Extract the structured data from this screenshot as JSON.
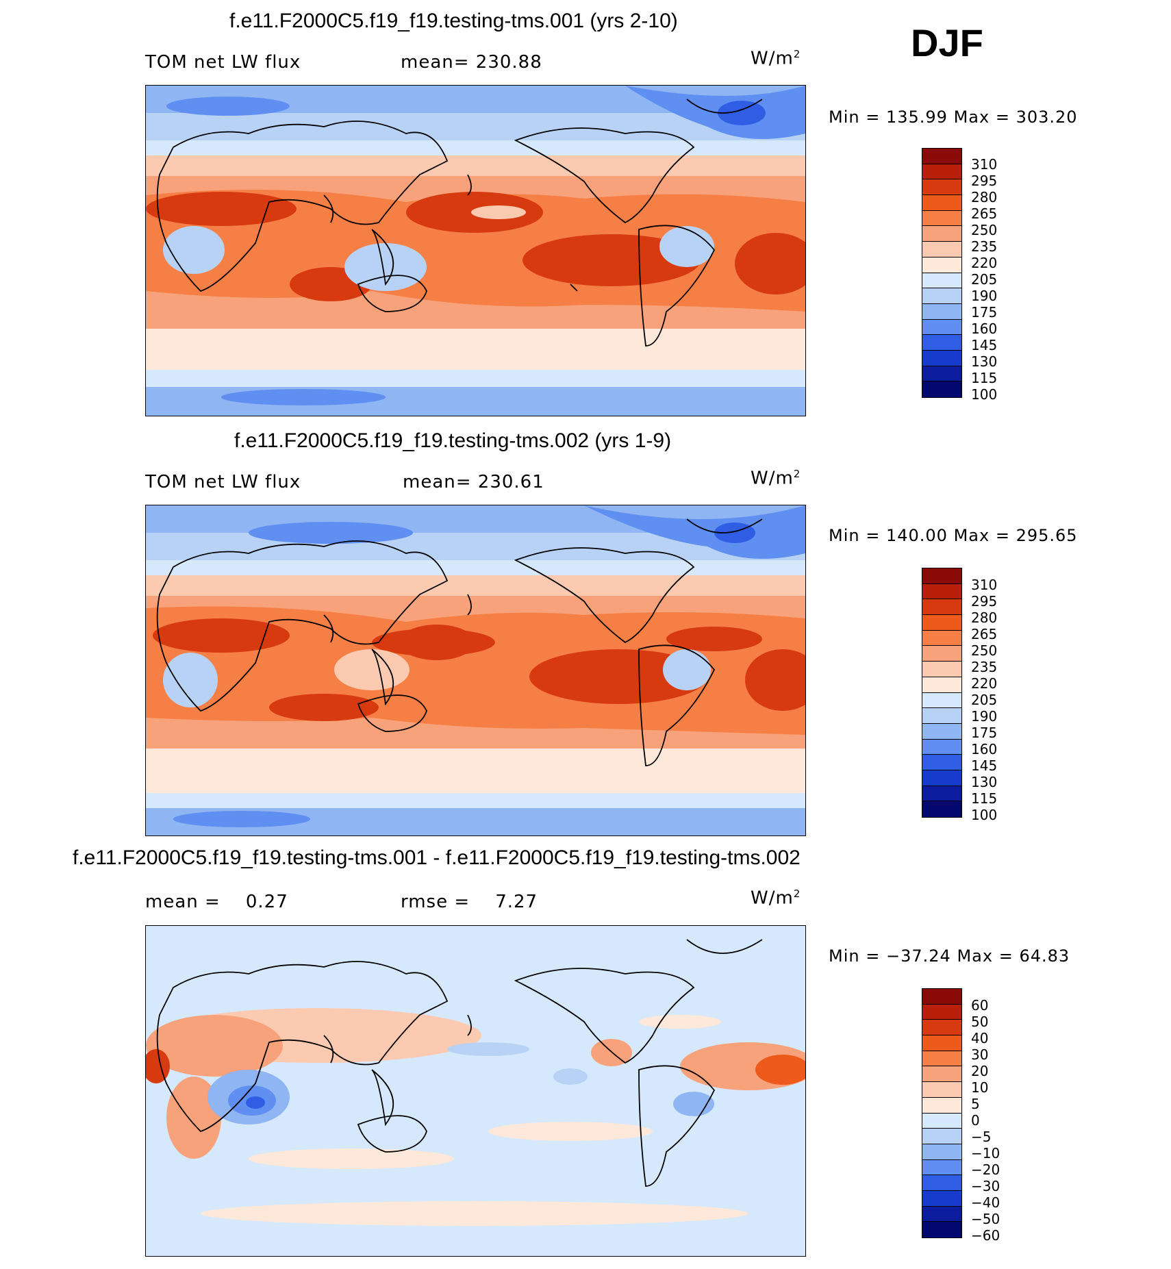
{
  "season": "DJF",
  "panels": [
    {
      "title": "f.e11.F2000C5.f19_f19.testing-tms.001 (yrs 2-10)",
      "left_label": "TOM net LW flux",
      "center_label": "mean= 230.88",
      "units": "W/m",
      "units_sup": "2",
      "min_label": "Min",
      "min_value": "135.99",
      "max_label": "Max",
      "max_value": "303.20",
      "levels": [
        "310",
        "295",
        "280",
        "265",
        "250",
        "235",
        "220",
        "205",
        "190",
        "175",
        "160",
        "145",
        "130",
        "115",
        "100"
      ]
    },
    {
      "title": "f.e11.F2000C5.f19_f19.testing-tms.002 (yrs 1-9)",
      "left_label": "TOM net LW flux",
      "center_label": "mean= 230.61",
      "units": "W/m",
      "units_sup": "2",
      "min_label": "Min",
      "min_value": "140.00",
      "max_label": "Max",
      "max_value": "295.65",
      "levels": [
        "310",
        "295",
        "280",
        "265",
        "250",
        "235",
        "220",
        "205",
        "190",
        "175",
        "160",
        "145",
        "130",
        "115",
        "100"
      ]
    },
    {
      "title": "f.e11.F2000C5.f19_f19.testing-tms.001 - f.e11.F2000C5.f19_f19.testing-tms.002",
      "left_label": "mean =    0.27",
      "center_label": "rmse =    7.27",
      "units": "W/m",
      "units_sup": "2",
      "min_label": "Min",
      "min_value": "−37.24",
      "max_label": "Max",
      "max_value": "64.83",
      "levels": [
        "60",
        "50",
        "40",
        "30",
        "20",
        "10",
        "5",
        "0",
        "−5",
        "−10",
        "−20",
        "−30",
        "−40",
        "−50",
        "−60"
      ]
    }
  ],
  "colors": {
    "palette": [
      "#8b0a0a",
      "#b8200b",
      "#d83a10",
      "#ee5a1c",
      "#f67f45",
      "#f7a27a",
      "#fbcab0",
      "#fde8d9",
      "#d6e8fb",
      "#b8d2f5",
      "#8fb5f3",
      "#5f8ff0",
      "#2f5ee5",
      "#173bcc",
      "#0b1d9c",
      "#02086e"
    ]
  }
}
